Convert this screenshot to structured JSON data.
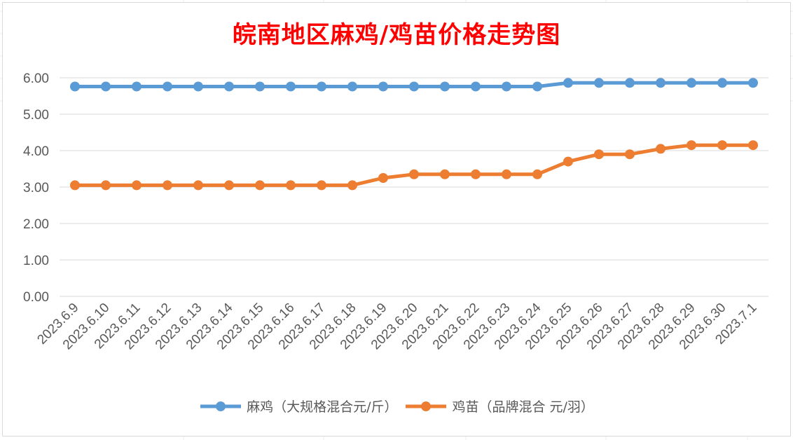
{
  "chart_data": {
    "type": "line",
    "title": "皖南地区麻鸡/鸡苗价格走势图",
    "categories": [
      "2023.6.9",
      "2023.6.10",
      "2023.6.11",
      "2023.6.12",
      "2023.6.13",
      "2023.6.14",
      "2023.6.15",
      "2023.6.16",
      "2023.6.17",
      "2023.6.18",
      "2023.6.19",
      "2023.6.20",
      "2023.6.21",
      "2023.6.22",
      "2023.6.23",
      "2023.6.24",
      "2023.6.25",
      "2023.6.26",
      "2023.6.27",
      "2023.6.28",
      "2023.6.29",
      "2023.6.30",
      "2023.7.1"
    ],
    "series": [
      {
        "name": "麻鸡（大规格混合元/斤）",
        "color": "#5b9bd5",
        "values": [
          5.76,
          5.76,
          5.76,
          5.76,
          5.76,
          5.76,
          5.76,
          5.76,
          5.76,
          5.76,
          5.76,
          5.76,
          5.76,
          5.76,
          5.76,
          5.76,
          5.86,
          5.86,
          5.86,
          5.86,
          5.86,
          5.86,
          5.86
        ]
      },
      {
        "name": "鸡苗（品牌混合 元/羽）",
        "color": "#ed7d31",
        "values": [
          3.05,
          3.05,
          3.05,
          3.05,
          3.05,
          3.05,
          3.05,
          3.05,
          3.05,
          3.05,
          3.25,
          3.35,
          3.35,
          3.35,
          3.35,
          3.35,
          3.7,
          3.9,
          3.9,
          4.05,
          4.15,
          4.15,
          4.15
        ]
      }
    ],
    "yticks": [
      "0.00",
      "1.00",
      "2.00",
      "3.00",
      "4.00",
      "5.00",
      "6.00"
    ],
    "ylim": [
      0,
      6
    ],
    "grid": true,
    "legend_position": "bottom"
  }
}
